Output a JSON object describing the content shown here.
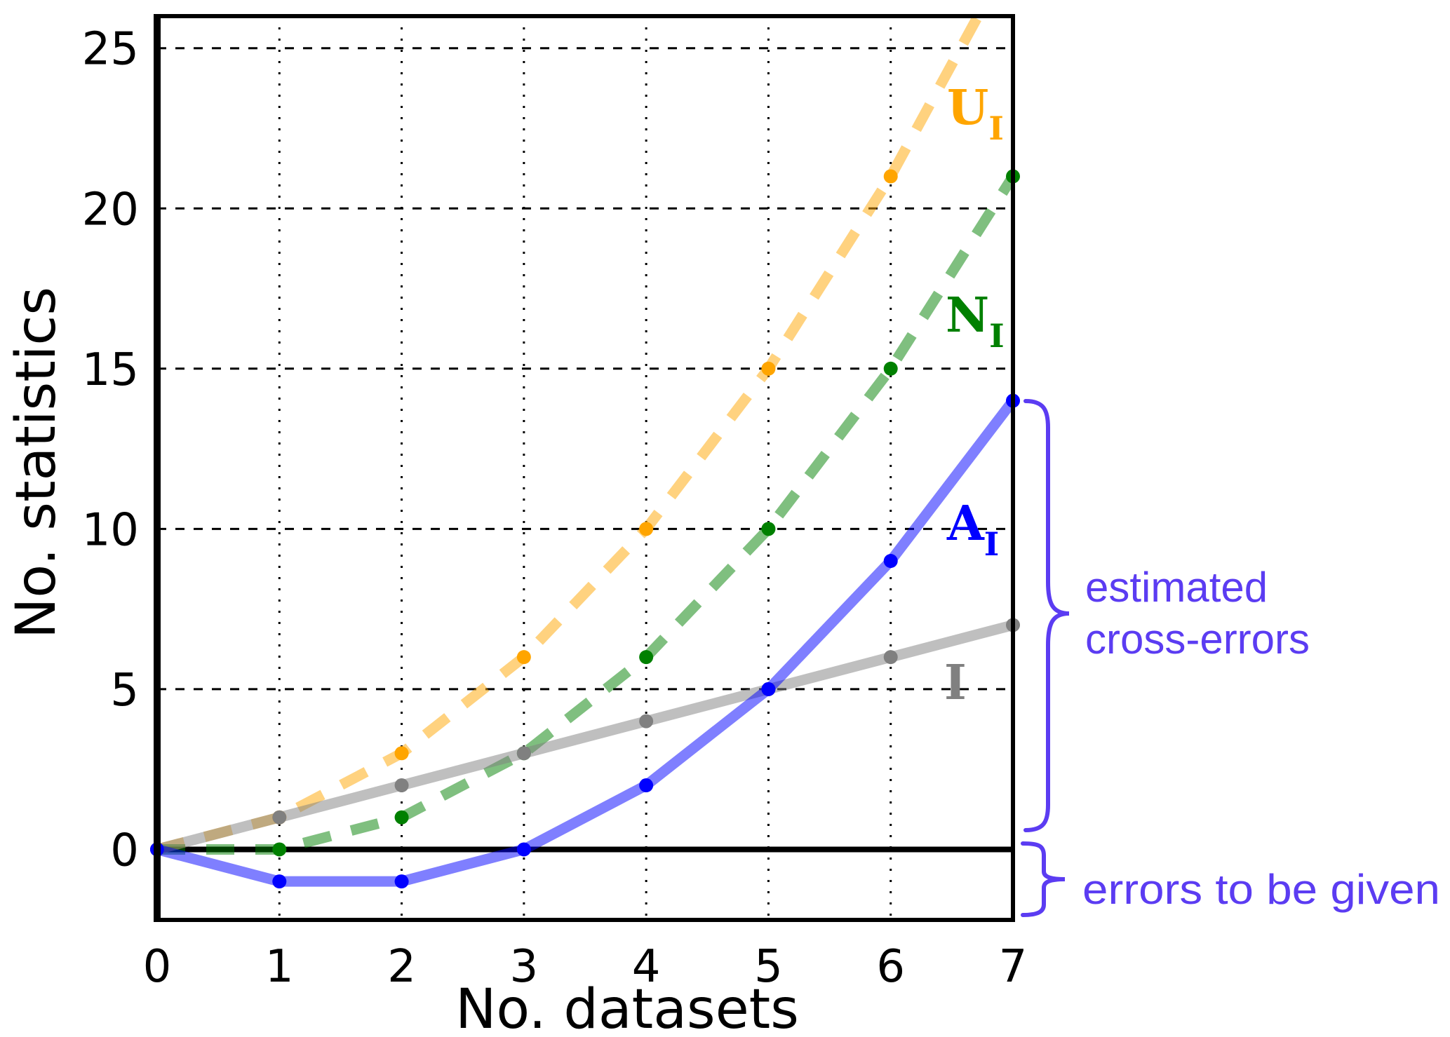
{
  "chart_data": {
    "type": "line",
    "title": "",
    "xlabel": "No. datasets",
    "ylabel": "No. statistics",
    "xlim": [
      0,
      7
    ],
    "ylim": [
      -2.2,
      26
    ],
    "xticks": [
      "0",
      "1",
      "2",
      "3",
      "4",
      "5",
      "6",
      "7"
    ],
    "yticks": [
      "0",
      "5",
      "10",
      "15",
      "20",
      "25"
    ],
    "grid": true,
    "x": [
      0,
      1,
      2,
      3,
      4,
      5,
      6,
      7
    ],
    "series": [
      {
        "name": "U",
        "sub": "I",
        "color": "#FFA500",
        "style": "dashed",
        "values": [
          0,
          1,
          3,
          6,
          10,
          15,
          21,
          28
        ]
      },
      {
        "name": "N",
        "sub": "I",
        "color": "#008000",
        "style": "dashed",
        "values": [
          0,
          0,
          1,
          3,
          6,
          10,
          15,
          21
        ]
      },
      {
        "name": "I",
        "sub": "",
        "color": "#808080",
        "style": "solid",
        "values": [
          0,
          1,
          2,
          3,
          4,
          5,
          6,
          7
        ]
      },
      {
        "name": "A",
        "sub": "I",
        "color": "#0000FF",
        "style": "solid",
        "values": [
          0,
          -1,
          -1,
          0,
          2,
          5,
          9,
          14
        ]
      }
    ],
    "annotations": {
      "upper_brace_line1": "estimated",
      "upper_brace_line2": "cross-errors",
      "lower_brace": "errors to be given",
      "color": "#5B3CF2"
    }
  }
}
